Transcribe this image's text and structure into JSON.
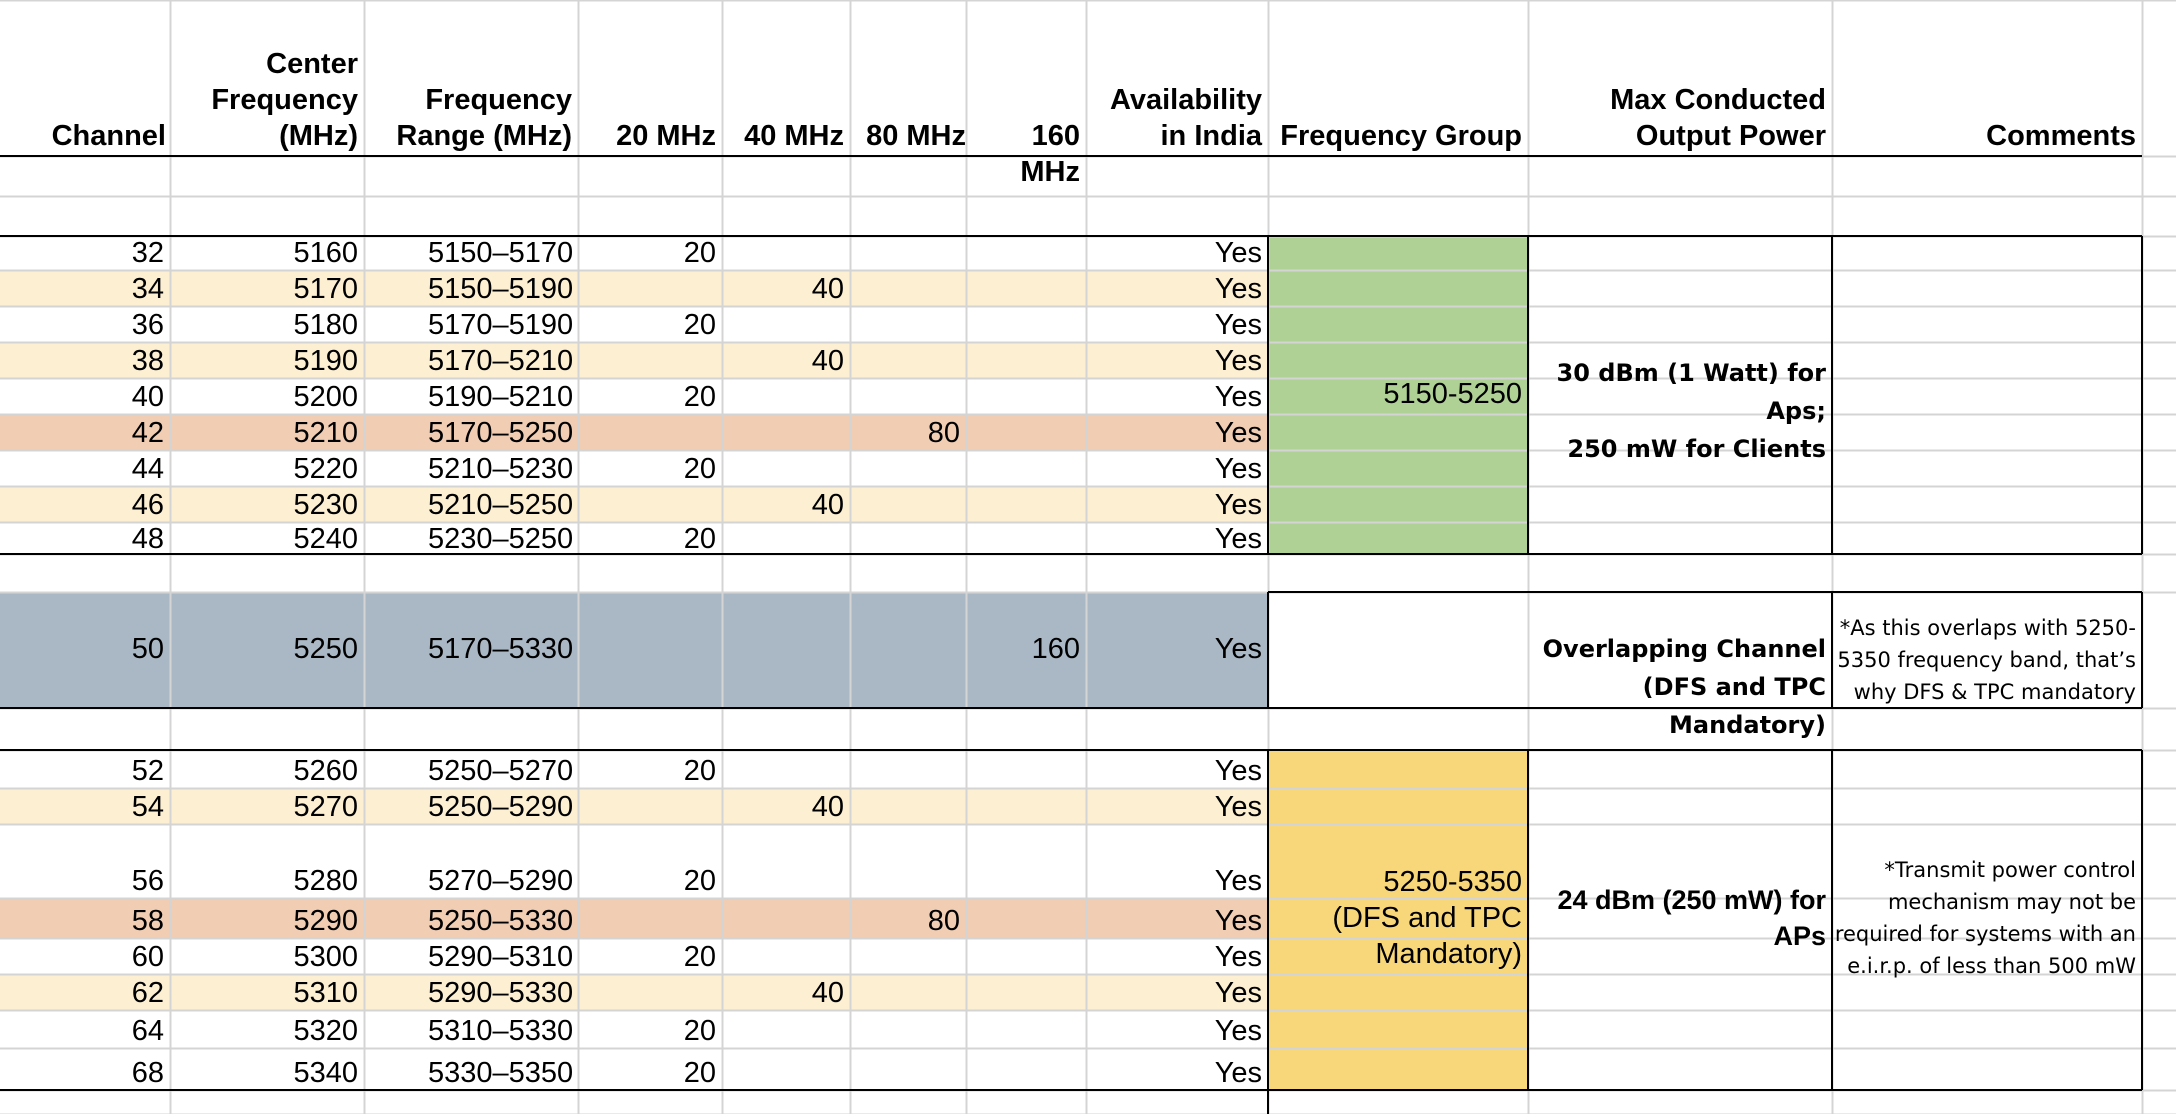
{
  "colors": {
    "gridline": "#d4d4d4",
    "border": "#000000",
    "band_cream": "#fdf0d2",
    "band_salmon": "#f1cdb3",
    "band_slate": "#aab7c5",
    "group_green": "#b0d195",
    "group_yellow": "#f8d77a"
  },
  "headers": {
    "channel": "Channel",
    "center_frequency": "Center\nFrequency\n(MHz)",
    "frequency_range": "Frequency\nRange (MHz)",
    "w20": "20 MHz",
    "w40": "40 MHz",
    "w80": "80 MHz",
    "w160": "160 MHz",
    "availability": "Availability\nin India",
    "frequency_group": "Frequency Group",
    "max_power": "Max Conducted\nOutput Power",
    "comments": "Comments"
  },
  "rows": [
    {
      "channel": "32",
      "center": "5160",
      "range": "5150–5170",
      "w20": "20",
      "w40": "",
      "w80": "",
      "w160": "",
      "avail": "Yes",
      "band": "none"
    },
    {
      "channel": "34",
      "center": "5170",
      "range": "5150–5190",
      "w20": "",
      "w40": "40",
      "w80": "",
      "w160": "",
      "avail": "Yes",
      "band": "cream"
    },
    {
      "channel": "36",
      "center": "5180",
      "range": "5170–5190",
      "w20": "20",
      "w40": "",
      "w80": "",
      "w160": "",
      "avail": "Yes",
      "band": "none"
    },
    {
      "channel": "38",
      "center": "5190",
      "range": "5170–5210",
      "w20": "",
      "w40": "40",
      "w80": "",
      "w160": "",
      "avail": "Yes",
      "band": "cream"
    },
    {
      "channel": "40",
      "center": "5200",
      "range": "5190–5210",
      "w20": "20",
      "w40": "",
      "w80": "",
      "w160": "",
      "avail": "Yes",
      "band": "none"
    },
    {
      "channel": "42",
      "center": "5210",
      "range": "5170–5250",
      "w20": "",
      "w40": "",
      "w80": "80",
      "w160": "",
      "avail": "Yes",
      "band": "salmon"
    },
    {
      "channel": "44",
      "center": "5220",
      "range": "5210–5230",
      "w20": "20",
      "w40": "",
      "w80": "",
      "w160": "",
      "avail": "Yes",
      "band": "none"
    },
    {
      "channel": "46",
      "center": "5230",
      "range": "5210–5250",
      "w20": "",
      "w40": "40",
      "w80": "",
      "w160": "",
      "avail": "Yes",
      "band": "cream"
    },
    {
      "channel": "48",
      "center": "5240",
      "range": "5230–5250",
      "w20": "20",
      "w40": "",
      "w80": "",
      "w160": "",
      "avail": "Yes",
      "band": "none"
    },
    {
      "channel": "50",
      "center": "5250",
      "range": "5170–5330",
      "w20": "",
      "w40": "",
      "w80": "",
      "w160": "160",
      "avail": "Yes",
      "band": "slate"
    },
    {
      "channel": "52",
      "center": "5260",
      "range": "5250–5270",
      "w20": "20",
      "w40": "",
      "w80": "",
      "w160": "",
      "avail": "Yes",
      "band": "none"
    },
    {
      "channel": "54",
      "center": "5270",
      "range": "5250–5290",
      "w20": "",
      "w40": "40",
      "w80": "",
      "w160": "",
      "avail": "Yes",
      "band": "cream"
    },
    {
      "channel": "56",
      "center": "5280",
      "range": "5270–5290",
      "w20": "20",
      "w40": "",
      "w80": "",
      "w160": "",
      "avail": "Yes",
      "band": "none"
    },
    {
      "channel": "58",
      "center": "5290",
      "range": "5250–5330",
      "w20": "",
      "w40": "",
      "w80": "80",
      "w160": "",
      "avail": "Yes",
      "band": "salmon"
    },
    {
      "channel": "60",
      "center": "5300",
      "range": "5290–5310",
      "w20": "20",
      "w40": "",
      "w80": "",
      "w160": "",
      "avail": "Yes",
      "band": "none"
    },
    {
      "channel": "62",
      "center": "5310",
      "range": "5290–5330",
      "w20": "",
      "w40": "40",
      "w80": "",
      "w160": "",
      "avail": "Yes",
      "band": "cream"
    },
    {
      "channel": "64",
      "center": "5320",
      "range": "5310–5330",
      "w20": "20",
      "w40": "",
      "w80": "",
      "w160": "",
      "avail": "Yes",
      "band": "none"
    },
    {
      "channel": "68",
      "center": "5340",
      "range": "5330–5350",
      "w20": "20",
      "w40": "",
      "w80": "",
      "w160": "",
      "avail": "Yes",
      "band": "none"
    }
  ],
  "groups": {
    "g1": {
      "label": "5150-5250",
      "power": "30 dBm (1 Watt) for Aps;\n250 mW for Clients",
      "comment": ""
    },
    "g2": {
      "label": "",
      "power": "Overlapping Channel\n(DFS and TPC Mandatory)",
      "comment": "*As this overlaps with 5250-\n5350 frequency band, that’s\nwhy DFS & TPC mandatory"
    },
    "g3": {
      "label": "5250-5350\n(DFS and TPC\nMandatory)",
      "power": "24 dBm (250 mW) for\nAPs",
      "comment": "*Transmit power control\nmechanism may not be\nrequired for systems with an\ne.i.r.p. of less than 500 mW"
    }
  }
}
